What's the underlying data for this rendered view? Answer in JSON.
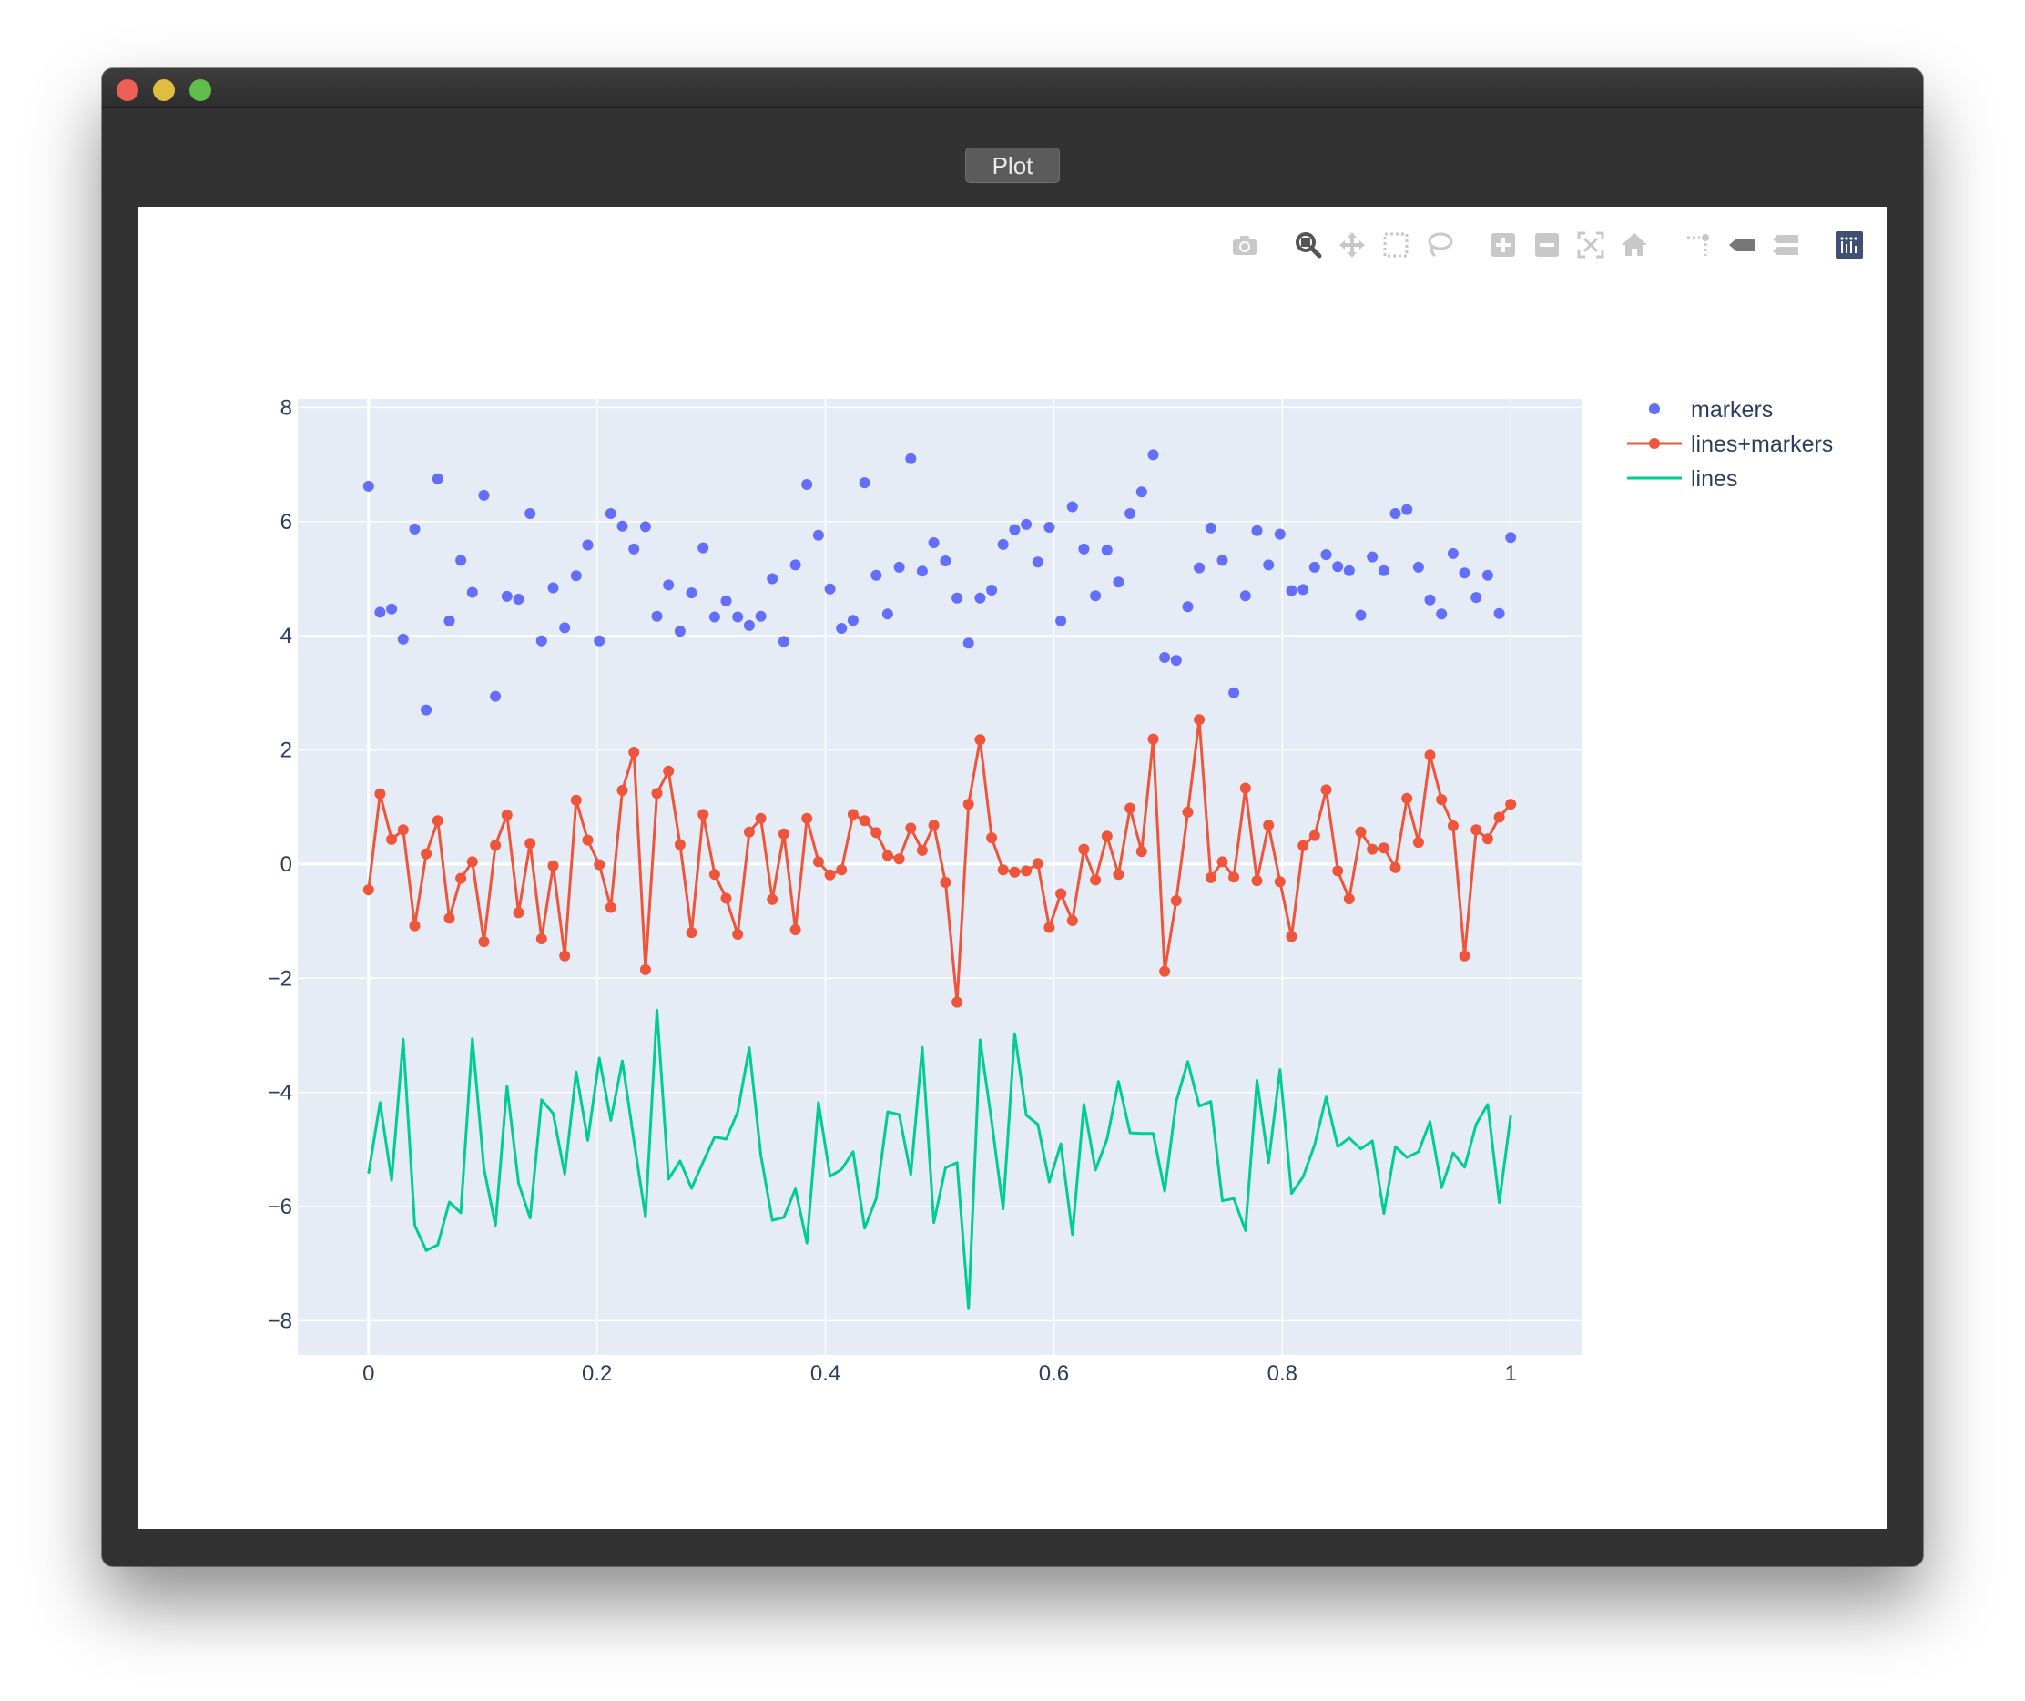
{
  "window": {
    "tab_label": "Plot"
  },
  "modebar": {
    "buttons": [
      "camera-icon",
      "zoom-icon",
      "pan-icon",
      "box-select-icon",
      "lasso-select-icon",
      "zoom-in-icon",
      "zoom-out-icon",
      "autoscale-icon",
      "reset-axes-icon",
      "spike-lines-icon",
      "hover-closest-icon",
      "hover-compare-icon",
      "plotly-logo-icon"
    ]
  },
  "colors": {
    "markers": "#636efa",
    "lines_markers": "#ef553b",
    "lines": "#00cc96",
    "plot_bg": "#e5ecf6",
    "tick_text": "#2a3f5f"
  },
  "chart_data": {
    "type": "scatter",
    "title": "",
    "xlabel": "",
    "ylabel": "",
    "xlim": [
      -0.062,
      1.062
    ],
    "ylim": [
      -8.6,
      8.15
    ],
    "xticks": [
      0,
      0.2,
      0.4,
      0.6,
      0.8,
      1
    ],
    "xtick_labels": [
      "0",
      "0.2",
      "0.4",
      "0.6",
      "0.8",
      "1"
    ],
    "yticks": [
      8,
      6,
      4,
      2,
      0,
      -2,
      -4,
      -6,
      -8
    ],
    "ytick_labels": [
      "8",
      "6",
      "4",
      "2",
      "0",
      "−2",
      "−4",
      "−6",
      "−8"
    ],
    "grid": true,
    "legend_position": "top-right",
    "x": [
      0,
      0.0101,
      0.0202,
      0.0303,
      0.0404,
      0.0505,
      0.0606,
      0.0707,
      0.0808,
      0.0909,
      0.101,
      0.1111,
      0.1212,
      0.1313,
      0.1414,
      0.1515,
      0.1616,
      0.1717,
      0.1818,
      0.1919,
      0.202,
      0.2121,
      0.2222,
      0.2323,
      0.2424,
      0.2525,
      0.2626,
      0.2727,
      0.2828,
      0.2929,
      0.303,
      0.3131,
      0.3232,
      0.3333,
      0.3434,
      0.3535,
      0.3636,
      0.3737,
      0.3838,
      0.3939,
      0.404,
      0.4141,
      0.4242,
      0.4343,
      0.4444,
      0.4545,
      0.4646,
      0.4747,
      0.4848,
      0.4949,
      0.5051,
      0.5152,
      0.5253,
      0.5354,
      0.5455,
      0.5556,
      0.5657,
      0.5758,
      0.5859,
      0.596,
      0.6061,
      0.6162,
      0.6263,
      0.6364,
      0.6465,
      0.6566,
      0.6667,
      0.6768,
      0.6869,
      0.697,
      0.7071,
      0.7172,
      0.7273,
      0.7374,
      0.7475,
      0.7576,
      0.7677,
      0.7778,
      0.7879,
      0.798,
      0.8081,
      0.8182,
      0.8283,
      0.8384,
      0.8485,
      0.8586,
      0.8687,
      0.8788,
      0.8889,
      0.899,
      0.9091,
      0.9192,
      0.9293,
      0.9394,
      0.9495,
      0.9596,
      0.9697,
      0.9798,
      0.9899,
      1
    ],
    "series": [
      {
        "name": "markers",
        "mode": "markers",
        "y": [
          6.62,
          4.41,
          4.47,
          3.94,
          5.87,
          2.7,
          6.75,
          4.26,
          5.32,
          4.76,
          6.46,
          2.94,
          4.69,
          4.64,
          6.14,
          3.91,
          4.84,
          4.14,
          5.05,
          5.59,
          3.91,
          6.14,
          5.92,
          5.52,
          5.91,
          4.34,
          4.89,
          4.08,
          4.75,
          5.54,
          4.33,
          4.61,
          4.33,
          4.18,
          4.34,
          5.0,
          3.9,
          5.24,
          6.65,
          5.76,
          4.82,
          4.13,
          4.27,
          6.68,
          5.06,
          4.38,
          5.2,
          7.1,
          5.13,
          5.63,
          5.31,
          4.66,
          3.87,
          4.66,
          4.8,
          5.6,
          5.86,
          5.95,
          5.29,
          5.9,
          4.26,
          6.26,
          5.52,
          4.7,
          5.5,
          4.94,
          6.14,
          6.52,
          7.17,
          3.62,
          3.57,
          4.51,
          5.19,
          5.89,
          5.32,
          3.0,
          4.7,
          5.84,
          5.24,
          5.78,
          4.79,
          4.81,
          5.2,
          5.42,
          5.21,
          5.14,
          4.36,
          5.38,
          5.14,
          6.14,
          6.21,
          5.2,
          4.63,
          4.38,
          5.44,
          5.1,
          4.67,
          5.06,
          4.39,
          5.72
        ]
      },
      {
        "name": "lines+markers",
        "mode": "lines+markers",
        "y": [
          -0.45,
          1.23,
          0.43,
          0.6,
          -1.08,
          0.18,
          0.76,
          -0.95,
          -0.25,
          0.04,
          -1.36,
          0.33,
          0.86,
          -0.85,
          0.36,
          -1.31,
          -0.03,
          -1.61,
          1.12,
          0.42,
          -0.01,
          -0.76,
          1.29,
          1.96,
          -1.85,
          1.24,
          1.63,
          0.34,
          -1.2,
          0.87,
          -0.18,
          -0.6,
          -1.23,
          0.56,
          0.8,
          -0.62,
          0.53,
          -1.15,
          0.8,
          0.04,
          -0.19,
          -0.1,
          0.87,
          0.76,
          0.55,
          0.15,
          0.09,
          0.63,
          0.24,
          0.68,
          -0.32,
          -2.42,
          1.05,
          2.18,
          0.46,
          -0.1,
          -0.14,
          -0.12,
          0.01,
          -1.11,
          -0.52,
          -0.99,
          0.26,
          -0.28,
          0.49,
          -0.18,
          0.98,
          0.22,
          2.19,
          -1.88,
          -0.64,
          0.91,
          2.53,
          -0.24,
          0.04,
          -0.23,
          1.33,
          -0.29,
          0.68,
          -0.31,
          -1.27,
          0.32,
          0.5,
          1.3,
          -0.12,
          -0.61,
          0.56,
          0.26,
          0.28,
          -0.06,
          1.15,
          0.38,
          1.91,
          1.13,
          0.67,
          -1.61,
          0.6,
          0.44,
          0.82,
          1.05
        ]
      },
      {
        "name": "lines",
        "mode": "lines",
        "y": [
          -5.42,
          -4.18,
          -5.54,
          -3.07,
          -6.33,
          -6.77,
          -6.67,
          -5.92,
          -6.11,
          -3.06,
          -5.33,
          -6.33,
          -3.89,
          -5.59,
          -6.2,
          -4.13,
          -4.37,
          -5.43,
          -3.64,
          -4.84,
          -3.4,
          -4.49,
          -3.45,
          -4.84,
          -6.18,
          -2.56,
          -5.52,
          -5.2,
          -5.68,
          -5.22,
          -4.78,
          -4.82,
          -4.34,
          -3.22,
          -5.1,
          -6.24,
          -6.19,
          -5.69,
          -6.64,
          -4.18,
          -5.47,
          -5.35,
          -5.04,
          -6.38,
          -5.86,
          -4.34,
          -4.39,
          -5.44,
          -3.21,
          -6.28,
          -5.32,
          -5.23,
          -7.79,
          -3.08,
          -4.51,
          -6.04,
          -2.97,
          -4.4,
          -4.56,
          -5.57,
          -4.9,
          -6.49,
          -4.21,
          -5.36,
          -4.82,
          -3.81,
          -4.71,
          -4.72,
          -4.72,
          -5.73,
          -4.16,
          -3.46,
          -4.24,
          -4.16,
          -5.9,
          -5.86,
          -6.42,
          -3.79,
          -5.23,
          -3.6,
          -5.77,
          -5.48,
          -4.92,
          -4.08,
          -4.95,
          -4.8,
          -4.99,
          -4.85,
          -6.12,
          -4.95,
          -5.14,
          -5.04,
          -4.51,
          -5.67,
          -5.06,
          -5.31,
          -4.56,
          -4.21,
          -5.93,
          -4.41
        ]
      }
    ]
  }
}
